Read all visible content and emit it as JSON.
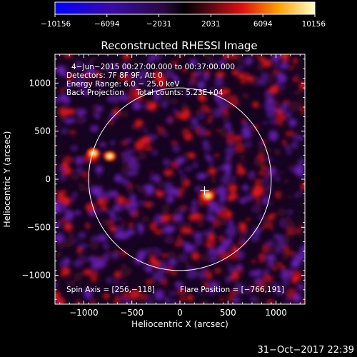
{
  "chart_data": {
    "type": "heatmap",
    "title": "Reconstructed RHESSI Image",
    "xlabel": "Heliocentric X (arcsec)",
    "ylabel": "Heliocentric Y (arcsec)",
    "xlim": [
      -1300,
      1300
    ],
    "ylim": [
      -1300,
      1300
    ],
    "xticks": [
      -1000,
      -500,
      0,
      500,
      1000
    ],
    "yticks": [
      -1000,
      -500,
      0,
      500,
      1000
    ],
    "xtick_labels": [
      "−1000",
      "−500",
      "0",
      "500",
      "1000"
    ],
    "ytick_labels": [
      "−1000",
      "−500",
      "0",
      "500",
      "1000"
    ],
    "colorbar": {
      "range": [
        -10156,
        10156
      ],
      "ticks": [
        -10156,
        -6094,
        -2031,
        2031,
        6094,
        10156
      ],
      "tick_labels": [
        "−10156",
        "−6094",
        "−2031",
        "2031",
        "6094",
        "10156"
      ]
    },
    "info_lines": [
      "4−Jun−2015 00:27:00.000 to 00:37:00.000",
      "Detectors: 7F 8F 9F, Att 0",
      "Energy Range: 6.0 − 25.0 keV",
      "Back Projection     Total counts: 5.23E+04"
    ],
    "spin_axis_label": "Spin Axis = [256,−118]",
    "flare_position_label": "Flare Position = [−766,191]",
    "spin_axis": [
      256,
      -118
    ],
    "flare_position": [
      -766,
      191
    ],
    "solar_disk_radius": 950,
    "sources": [
      {
        "x": -900,
        "y": 270,
        "intensity": 1.0
      },
      {
        "x": -730,
        "y": 240,
        "intensity": 1.0
      },
      {
        "x": 290,
        "y": -170,
        "intensity": 0.9
      }
    ],
    "timestamp": "31−Oct−2017 22:39"
  }
}
